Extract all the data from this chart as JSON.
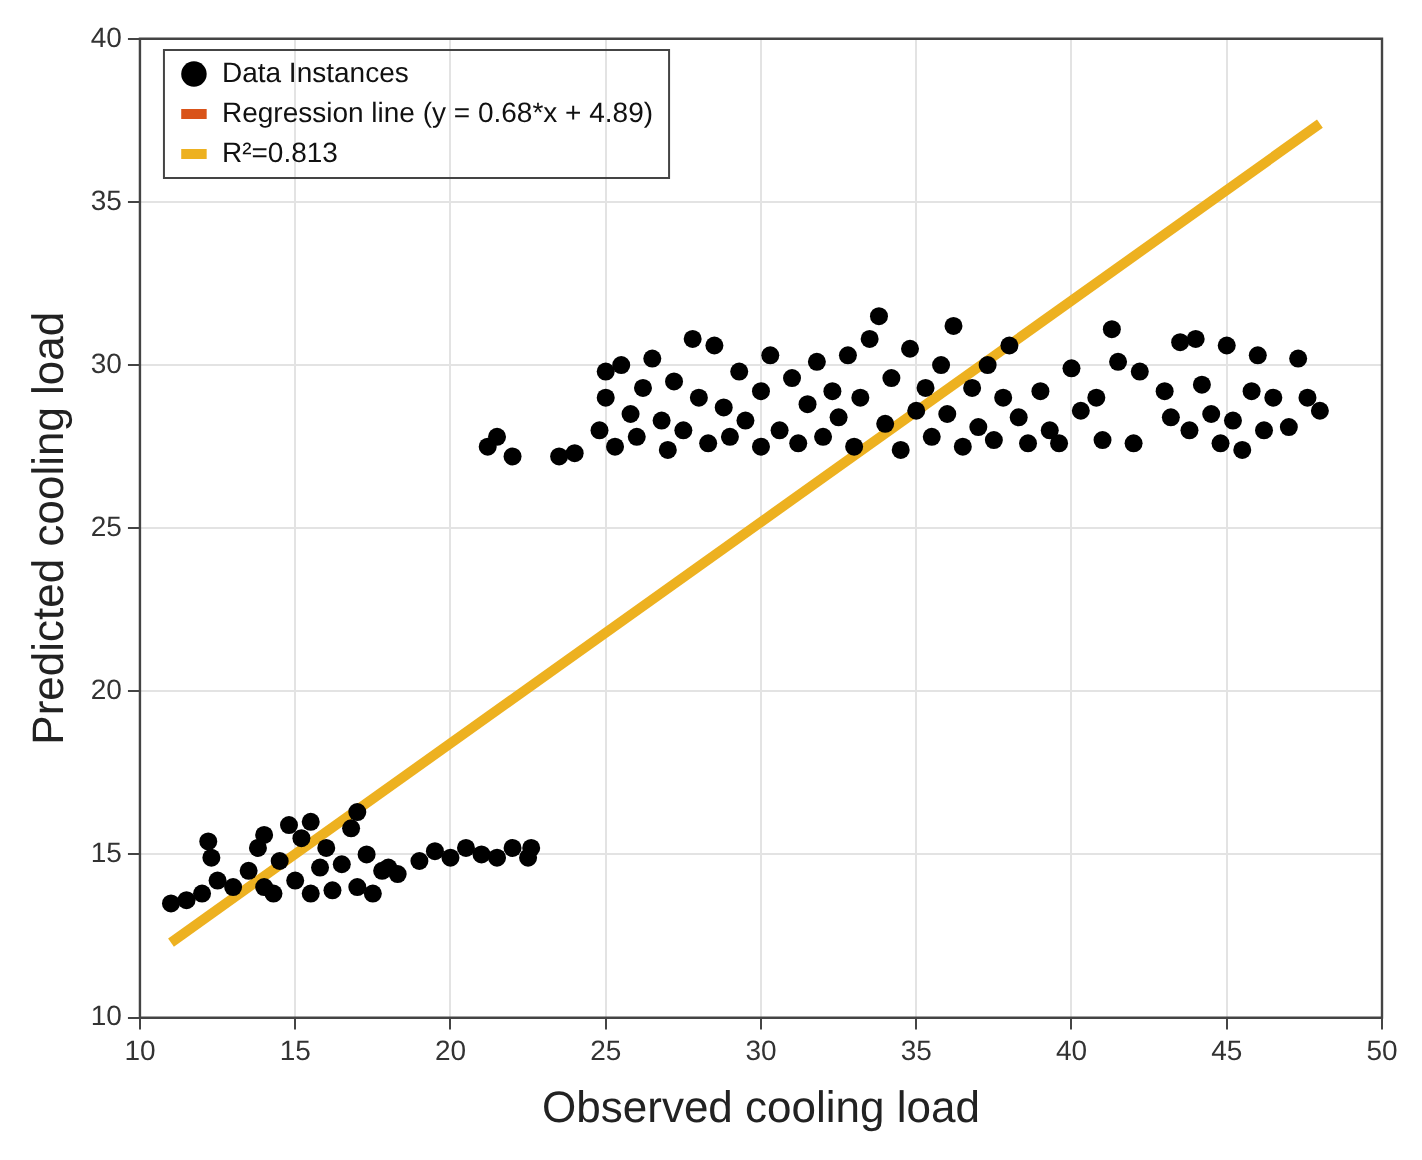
{
  "chart_data": {
    "type": "scatter",
    "xlabel": "Observed cooling load",
    "ylabel": "Predicted cooling load",
    "xlim": [
      10,
      50
    ],
    "xticks": [
      10,
      15,
      20,
      25,
      30,
      35,
      40,
      45,
      50
    ],
    "ylim": [
      10,
      40
    ],
    "yticks": [
      10,
      15,
      20,
      25,
      30,
      35,
      40
    ],
    "grid": true,
    "legend": "top left",
    "series": [
      {
        "name": "Data Instances",
        "color": "#000000",
        "marker": "circle",
        "x": [
          11,
          11.5,
          12,
          12.2,
          12.3,
          12.5,
          13,
          13.5,
          13.8,
          14,
          14,
          14.3,
          14.5,
          14.8,
          15,
          15.2,
          15.5,
          15.5,
          15.8,
          16,
          16.2,
          16.5,
          16.8,
          17,
          17,
          17.3,
          17.5,
          17.8,
          18,
          18.3,
          19,
          19.5,
          20,
          20.5,
          21,
          21.5,
          22,
          22.5,
          22.6,
          21.2,
          21.5,
          22,
          23.5,
          24,
          24.8,
          25,
          25,
          25.3,
          25.5,
          25.8,
          26,
          26.2,
          26.5,
          26.8,
          27,
          27.2,
          27.5,
          27.8,
          28,
          28.3,
          28.5,
          28.8,
          29,
          29.3,
          29.5,
          30,
          30,
          30.3,
          30.6,
          31,
          31.2,
          31.5,
          31.8,
          32,
          32.3,
          32.5,
          32.8,
          33,
          33.2,
          33.5,
          33.8,
          34,
          34.2,
          34.5,
          34.8,
          35,
          35.3,
          35.5,
          35.8,
          36,
          36.2,
          36.5,
          36.8,
          37,
          37.3,
          37.5,
          37.8,
          38,
          38.3,
          38.6,
          39,
          39.3,
          39.6,
          40,
          40.3,
          40.8,
          41,
          41.3,
          41.5,
          42,
          42.2,
          43,
          43.2,
          43.5,
          43.8,
          44,
          44.2,
          44.5,
          44.8,
          45,
          45.2,
          45.5,
          45.8,
          46,
          46.2,
          46.5,
          47,
          47.3,
          47.6,
          48
        ],
        "values": [
          13.5,
          13.6,
          13.8,
          15.4,
          14.9,
          14.2,
          14,
          14.5,
          15.2,
          14,
          15.6,
          13.8,
          14.8,
          15.9,
          14.2,
          15.5,
          13.8,
          16,
          14.6,
          15.2,
          13.9,
          14.7,
          15.8,
          16.3,
          14,
          15,
          13.8,
          14.5,
          14.6,
          14.4,
          14.8,
          15.1,
          14.9,
          15.2,
          15,
          14.9,
          15.2,
          14.9,
          15.2,
          27.5,
          27.8,
          27.2,
          27.2,
          27.3,
          28,
          29,
          29.8,
          27.5,
          30,
          28.5,
          27.8,
          29.3,
          30.2,
          28.3,
          27.4,
          29.5,
          28,
          30.8,
          29,
          27.6,
          30.6,
          28.7,
          27.8,
          29.8,
          28.3,
          27.5,
          29.2,
          30.3,
          28,
          29.6,
          27.6,
          28.8,
          30.1,
          27.8,
          29.2,
          28.4,
          30.3,
          27.5,
          29,
          30.8,
          31.5,
          28.2,
          29.6,
          27.4,
          30.5,
          28.6,
          29.3,
          27.8,
          30,
          28.5,
          31.2,
          27.5,
          29.3,
          28.1,
          30,
          27.7,
          29,
          30.6,
          28.4,
          27.6,
          29.2,
          28,
          27.6,
          29.9,
          28.6,
          29,
          27.7,
          31.1,
          30.1,
          27.6,
          29.8,
          29.2,
          28.4,
          30.7,
          28,
          30.8,
          29.4,
          28.5,
          27.6,
          30.6,
          28.3,
          27.4,
          29.2,
          30.3,
          28,
          29,
          28.1,
          30.2,
          29,
          28.6
        ]
      },
      {
        "name": "Regression line (y = 0.68*x + 4.89)",
        "type": "line",
        "color": "#d95319",
        "marker": "none"
      },
      {
        "name": "R²=0.813",
        "type": "line",
        "color": "#edb120",
        "marker": "none",
        "x": [
          11,
          48
        ],
        "values": [
          12.3,
          37.4
        ]
      }
    ]
  }
}
